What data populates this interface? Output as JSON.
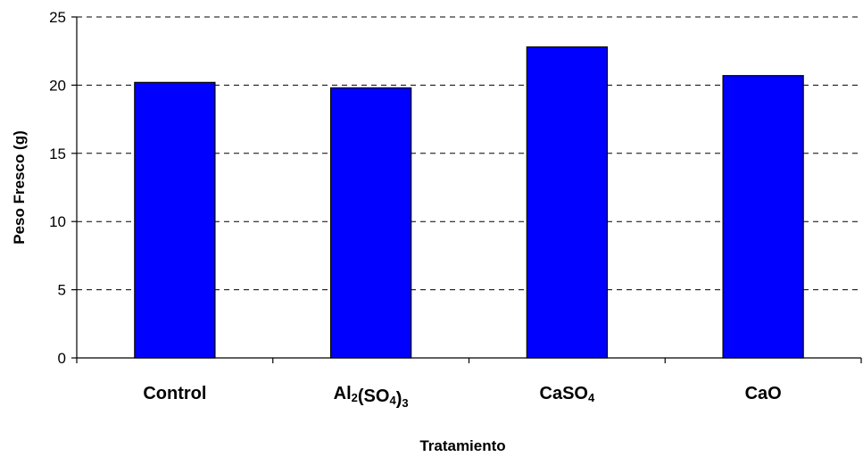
{
  "chart_data": {
    "type": "bar",
    "title": "",
    "xlabel": "Tratamiento",
    "ylabel": "Peso Fresco (g)",
    "ylim": [
      0,
      25
    ],
    "yticks": [
      0,
      5,
      10,
      15,
      20,
      25
    ],
    "grid": true,
    "categories": [
      {
        "label": "Control",
        "parts": [
          {
            "t": "Control",
            "sub": false
          }
        ]
      },
      {
        "label": "Al2(SO4)3",
        "parts": [
          {
            "t": "Al",
            "sub": false
          },
          {
            "t": "2",
            "sub": true
          },
          {
            "t": "(SO",
            "sub": false
          },
          {
            "t": "4",
            "sub": true
          },
          {
            "t": ")",
            "sub": false
          },
          {
            "t": "3",
            "sub": true
          }
        ]
      },
      {
        "label": "CaSO4",
        "parts": [
          {
            "t": "CaSO",
            "sub": false
          },
          {
            "t": "4",
            "sub": true
          }
        ]
      },
      {
        "label": "CaO",
        "parts": [
          {
            "t": "CaO",
            "sub": false
          }
        ]
      }
    ],
    "values": [
      20.2,
      19.8,
      22.8,
      20.7
    ],
    "bar_color": "#0000FF"
  }
}
